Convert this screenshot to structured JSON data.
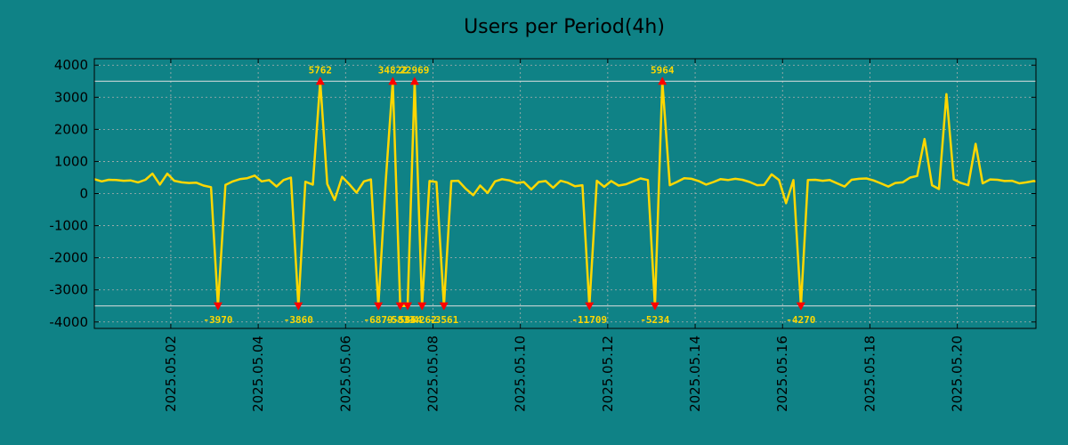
{
  "chart_data": {
    "type": "line",
    "title": "Users per Period(4h)",
    "xlabel": "",
    "ylabel": "",
    "ylim": [
      -4200,
      4200
    ],
    "yticks": [
      4000,
      3000,
      2000,
      1000,
      0,
      -1000,
      -2000,
      -3000,
      -4000
    ],
    "ytick_labels": [
      "4000",
      "3000",
      "2000",
      "1000",
      "0",
      "-1000",
      "-2000",
      "-3000",
      "-4000"
    ],
    "xlim_days": [
      0.25,
      21.8
    ],
    "xticks": [
      {
        "day": 2,
        "label": "2025.05.02"
      },
      {
        "day": 4,
        "label": "2025.05.04"
      },
      {
        "day": 6,
        "label": "2025.05.06"
      },
      {
        "day": 8,
        "label": "2025.05.08"
      },
      {
        "day": 10,
        "label": "2025.05.10"
      },
      {
        "day": 12,
        "label": "2025.05.12"
      },
      {
        "day": 14,
        "label": "2025.05.14"
      },
      {
        "day": 16,
        "label": "2025.05.16"
      },
      {
        "day": 18,
        "label": "2025.05.18"
      },
      {
        "day": 20,
        "label": "2025.05.20"
      }
    ],
    "threshold_lines": [
      3500,
      -3500
    ],
    "grid": true,
    "colors": {
      "background": "#0f8286",
      "line": "#ffd700",
      "marker": "#ff0000",
      "annotation": "#ffd700",
      "threshold": "#e0e0e0",
      "grid": "#b0b0b0"
    },
    "series": [
      {
        "name": "Users",
        "points": [
          [
            0.25,
            450
          ],
          [
            0.42,
            380
          ],
          [
            0.58,
            430
          ],
          [
            0.75,
            420
          ],
          [
            0.92,
            400
          ],
          [
            1.08,
            410
          ],
          [
            1.25,
            350
          ],
          [
            1.42,
            430
          ],
          [
            1.58,
            620
          ],
          [
            1.75,
            280
          ],
          [
            1.92,
            620
          ],
          [
            2.08,
            400
          ],
          [
            2.25,
            350
          ],
          [
            2.42,
            330
          ],
          [
            2.58,
            340
          ],
          [
            2.75,
            250
          ],
          [
            2.92,
            200
          ],
          [
            3.08,
            -3500
          ],
          [
            3.25,
            270
          ],
          [
            3.42,
            380
          ],
          [
            3.58,
            450
          ],
          [
            3.75,
            480
          ],
          [
            3.92,
            560
          ],
          [
            4.08,
            380
          ],
          [
            4.25,
            420
          ],
          [
            4.42,
            220
          ],
          [
            4.58,
            420
          ],
          [
            4.75,
            500
          ],
          [
            4.92,
            -3500
          ],
          [
            5.08,
            370
          ],
          [
            5.25,
            280
          ],
          [
            5.42,
            3500
          ],
          [
            5.58,
            300
          ],
          [
            5.75,
            -200
          ],
          [
            5.92,
            520
          ],
          [
            6.08,
            300
          ],
          [
            6.25,
            30
          ],
          [
            6.42,
            380
          ],
          [
            6.58,
            440
          ],
          [
            6.75,
            -3500
          ],
          [
            6.92,
            420
          ],
          [
            7.08,
            3500
          ],
          [
            7.25,
            -3500
          ],
          [
            7.42,
            -3500
          ],
          [
            7.58,
            3500
          ],
          [
            7.75,
            -3500
          ],
          [
            7.92,
            390
          ],
          [
            8.08,
            360
          ],
          [
            8.25,
            -3500
          ],
          [
            8.42,
            390
          ],
          [
            8.58,
            400
          ],
          [
            8.75,
            150
          ],
          [
            8.92,
            -50
          ],
          [
            9.08,
            250
          ],
          [
            9.25,
            20
          ],
          [
            9.42,
            380
          ],
          [
            9.58,
            450
          ],
          [
            9.75,
            410
          ],
          [
            9.92,
            330
          ],
          [
            10.08,
            360
          ],
          [
            10.25,
            130
          ],
          [
            10.42,
            360
          ],
          [
            10.58,
            390
          ],
          [
            10.75,
            180
          ],
          [
            10.92,
            400
          ],
          [
            11.08,
            340
          ],
          [
            11.25,
            230
          ],
          [
            11.42,
            260
          ],
          [
            11.58,
            -3500
          ],
          [
            11.75,
            400
          ],
          [
            11.92,
            210
          ],
          [
            12.08,
            390
          ],
          [
            12.25,
            250
          ],
          [
            12.42,
            290
          ],
          [
            12.58,
            380
          ],
          [
            12.75,
            470
          ],
          [
            12.92,
            420
          ],
          [
            13.08,
            -3500
          ],
          [
            13.25,
            3500
          ],
          [
            13.42,
            260
          ],
          [
            13.58,
            360
          ],
          [
            13.75,
            480
          ],
          [
            13.92,
            460
          ],
          [
            14.08,
            390
          ],
          [
            14.25,
            280
          ],
          [
            14.42,
            360
          ],
          [
            14.58,
            450
          ],
          [
            14.75,
            420
          ],
          [
            14.92,
            460
          ],
          [
            15.08,
            430
          ],
          [
            15.25,
            360
          ],
          [
            15.42,
            260
          ],
          [
            15.58,
            270
          ],
          [
            15.75,
            600
          ],
          [
            15.92,
            420
          ],
          [
            16.08,
            -300
          ],
          [
            16.25,
            420
          ],
          [
            16.42,
            -3500
          ],
          [
            16.58,
            420
          ],
          [
            16.75,
            430
          ],
          [
            16.92,
            400
          ],
          [
            17.08,
            420
          ],
          [
            17.25,
            320
          ],
          [
            17.42,
            220
          ],
          [
            17.58,
            430
          ],
          [
            17.75,
            460
          ],
          [
            17.92,
            470
          ],
          [
            18.08,
            410
          ],
          [
            18.25,
            320
          ],
          [
            18.42,
            220
          ],
          [
            18.58,
            330
          ],
          [
            18.75,
            350
          ],
          [
            18.92,
            500
          ],
          [
            19.08,
            550
          ],
          [
            19.25,
            1700
          ],
          [
            19.42,
            260
          ],
          [
            19.58,
            140
          ],
          [
            19.75,
            3100
          ],
          [
            19.92,
            440
          ],
          [
            20.08,
            330
          ],
          [
            20.25,
            260
          ],
          [
            20.42,
            1550
          ],
          [
            20.58,
            320
          ],
          [
            20.75,
            440
          ],
          [
            20.92,
            430
          ],
          [
            21.08,
            390
          ],
          [
            21.25,
            400
          ],
          [
            21.42,
            320
          ],
          [
            21.58,
            350
          ],
          [
            21.75,
            390
          ],
          [
            21.8,
            380
          ]
        ]
      }
    ],
    "markers_up": [
      {
        "day": 5.42,
        "value": 3500,
        "label": "5762"
      },
      {
        "day": 7.08,
        "value": 3500,
        "label": "34822"
      },
      {
        "day": 7.58,
        "value": 3500,
        "label": "22969"
      },
      {
        "day": 13.25,
        "value": 3500,
        "label": "5964"
      }
    ],
    "markers_down": [
      {
        "day": 3.08,
        "value": -3500,
        "label": "-3970"
      },
      {
        "day": 4.92,
        "value": -3500,
        "label": "-3860"
      },
      {
        "day": 6.75,
        "value": -3500,
        "label": "-6879"
      },
      {
        "day": 7.25,
        "value": -3500,
        "label": "-5833"
      },
      {
        "day": 7.42,
        "value": -3500,
        "label": "-5864"
      },
      {
        "day": 7.75,
        "value": -3500,
        "label": "-4262"
      },
      {
        "day": 8.25,
        "value": -3500,
        "label": "-3561"
      },
      {
        "day": 11.58,
        "value": -3500,
        "label": "-11709"
      },
      {
        "day": 13.08,
        "value": -3500,
        "label": "-5234"
      },
      {
        "day": 16.42,
        "value": -3500,
        "label": "-4270"
      }
    ]
  }
}
